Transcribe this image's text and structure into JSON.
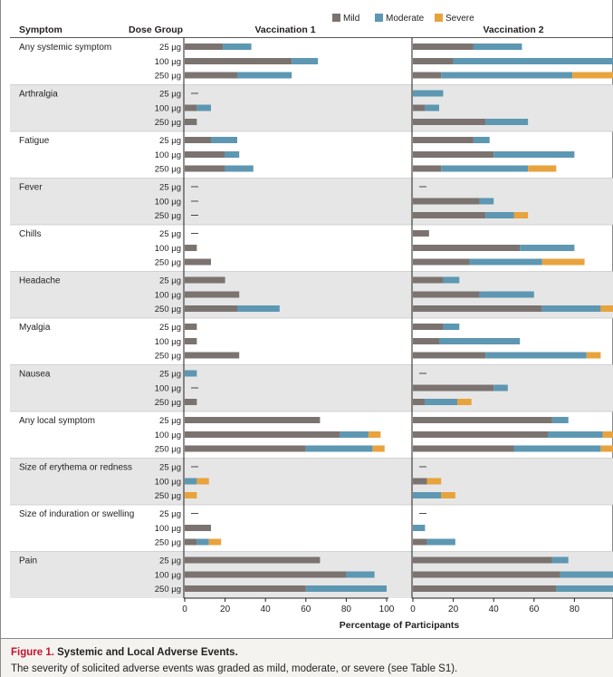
{
  "chart_data": {
    "type": "bar",
    "orientation": "horizontal",
    "stacked": true,
    "xlabel": "Percentage of Participants",
    "xlim": [
      0,
      100
    ],
    "xticks": [
      0,
      20,
      40,
      60,
      80,
      100
    ],
    "legend": {
      "placement": "top",
      "entries": [
        {
          "name": "Mild",
          "color": "#7b7370"
        },
        {
          "name": "Moderate",
          "color": "#5d97b2"
        },
        {
          "name": "Severe",
          "color": "#e8a33d"
        }
      ]
    },
    "column_headers": {
      "symptom": "Symptom",
      "dose_group": "Dose Group"
    },
    "dose_groups": [
      "25 µg",
      "100 µg",
      "250 µg"
    ],
    "panels": [
      {
        "title": "Vaccination 1",
        "groups": [
          {
            "symptom": "Any systemic symptom",
            "rows": [
              [
                19,
                14,
                0
              ],
              [
                53,
                13,
                0
              ],
              [
                26,
                27,
                0
              ]
            ]
          },
          {
            "symptom": "Arthralgia",
            "rows": [
              null,
              [
                6,
                7,
                0
              ],
              [
                6,
                0,
                0
              ]
            ]
          },
          {
            "symptom": "Fatigue",
            "rows": [
              [
                13,
                13,
                0
              ],
              [
                20,
                7,
                0
              ],
              [
                20,
                14,
                0
              ]
            ]
          },
          {
            "symptom": "Fever",
            "rows": [
              null,
              null,
              null
            ]
          },
          {
            "symptom": "Chills",
            "rows": [
              null,
              [
                6,
                0,
                0
              ],
              [
                13,
                0,
                0
              ]
            ]
          },
          {
            "symptom": "Headache",
            "rows": [
              [
                20,
                0,
                0
              ],
              [
                27,
                0,
                0
              ],
              [
                26,
                21,
                0
              ]
            ]
          },
          {
            "symptom": "Myalgia",
            "rows": [
              [
                6,
                0,
                0
              ],
              [
                6,
                0,
                0
              ],
              [
                27,
                0,
                0
              ]
            ]
          },
          {
            "symptom": "Nausea",
            "rows": [
              [
                0,
                6,
                0
              ],
              null,
              [
                6,
                0,
                0
              ]
            ]
          },
          {
            "symptom": "Any local symptom",
            "rows": [
              [
                67,
                0,
                0
              ],
              [
                77,
                14,
                6
              ],
              [
                60,
                33,
                6
              ]
            ]
          },
          {
            "symptom": "Size of erythema or redness",
            "rows": [
              null,
              [
                0,
                6,
                6
              ],
              [
                0,
                0,
                6
              ]
            ]
          },
          {
            "symptom": "Size of induration or swelling",
            "rows": [
              null,
              [
                13,
                0,
                0
              ],
              [
                6,
                6,
                6
              ]
            ]
          },
          {
            "symptom": "Pain",
            "rows": [
              [
                67,
                0,
                0
              ],
              [
                80,
                14,
                0
              ],
              [
                60,
                40,
                0
              ]
            ]
          }
        ]
      },
      {
        "title": "Vaccination 2",
        "groups": [
          {
            "symptom": "Any systemic symptom",
            "rows": [
              [
                30,
                24,
                0
              ],
              [
                20,
                80,
                0
              ],
              [
                14,
                65,
                21
              ]
            ]
          },
          {
            "symptom": "Arthralgia",
            "rows": [
              [
                0,
                15,
                0
              ],
              [
                6,
                7,
                0
              ],
              [
                36,
                21,
                0
              ]
            ]
          },
          {
            "symptom": "Fatigue",
            "rows": [
              [
                30,
                8,
                0
              ],
              [
                40,
                40,
                0
              ],
              [
                14,
                43,
                14
              ]
            ]
          },
          {
            "symptom": "Fever",
            "rows": [
              null,
              [
                33,
                7,
                0
              ],
              [
                36,
                14,
                7
              ]
            ]
          },
          {
            "symptom": "Chills",
            "rows": [
              [
                8,
                0,
                0
              ],
              [
                53,
                27,
                0
              ],
              [
                28,
                36,
                21
              ]
            ]
          },
          {
            "symptom": "Headache",
            "rows": [
              [
                15,
                8,
                0
              ],
              [
                33,
                27,
                0
              ],
              [
                64,
                29,
                7
              ]
            ]
          },
          {
            "symptom": "Myalgia",
            "rows": [
              [
                15,
                8,
                0
              ],
              [
                13,
                40,
                0
              ],
              [
                36,
                50,
                7
              ]
            ]
          },
          {
            "symptom": "Nausea",
            "rows": [
              null,
              [
                40,
                7,
                0
              ],
              [
                6,
                16,
                7
              ]
            ]
          },
          {
            "symptom": "Any local symptom",
            "rows": [
              [
                69,
                8,
                0
              ],
              [
                67,
                27,
                6
              ],
              [
                50,
                43,
                7
              ]
            ]
          },
          {
            "symptom": "Size of erythema or redness",
            "rows": [
              null,
              [
                7,
                0,
                7
              ],
              [
                0,
                14,
                7
              ]
            ]
          },
          {
            "symptom": "Size of induration or swelling",
            "rows": [
              null,
              [
                0,
                6,
                0
              ],
              [
                7,
                14,
                0
              ]
            ]
          },
          {
            "symptom": "Pain",
            "rows": [
              [
                69,
                8,
                0
              ],
              [
                73,
                27,
                0
              ],
              [
                71,
                29,
                0
              ]
            ]
          }
        ]
      }
    ]
  },
  "caption": {
    "figure_number": "Figure 1.",
    "figure_title": "Systemic and Local Adverse Events.",
    "text": "The severity of solicited adverse events was graded as mild, moderate, or severe (see Table S1)."
  }
}
